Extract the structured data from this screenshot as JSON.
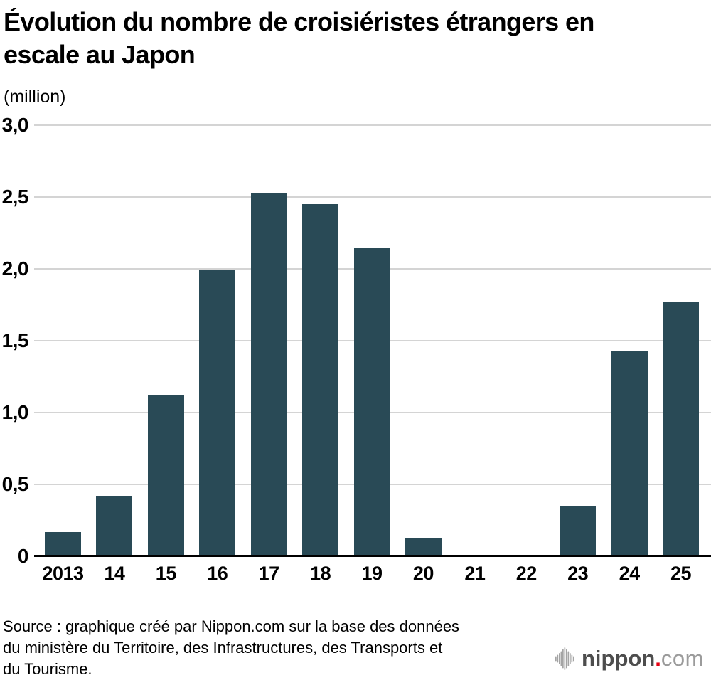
{
  "page": {
    "title_lines": [
      "Évolution du nombre de croisiéristes étrangers en",
      "escale au Japon"
    ],
    "unit_label": "(million)"
  },
  "chart_data": {
    "type": "bar",
    "title": "Évolution du nombre de croisiéristes étrangers en escale au Japon",
    "ylabel": "(million)",
    "xlabel": "",
    "categories": [
      "2013",
      "14",
      "15",
      "16",
      "17",
      "18",
      "19",
      "20",
      "21",
      "22",
      "23",
      "24",
      "25"
    ],
    "values": [
      0.17,
      0.42,
      1.12,
      1.99,
      2.53,
      2.45,
      2.15,
      0.13,
      0,
      0,
      0.35,
      1.43,
      1.77
    ],
    "ylim": [
      0,
      3.0
    ],
    "ytick_values": [
      0,
      0.5,
      1.0,
      1.5,
      2.0,
      2.5,
      3.0
    ],
    "ytick_labels": [
      "0",
      "0,5",
      "1,0",
      "1,5",
      "2,0",
      "2,5",
      "3,0"
    ],
    "grid": true,
    "legend": false,
    "bar_color": "#294a56",
    "grid_color": "#d4d4d4",
    "axis_color": "#000000"
  },
  "source": {
    "lines": [
      "Source : graphique créé par Nippon.com sur la base des données",
      "du ministère du Territoire, des Infrastructures, des Transports et",
      "du Tourisme."
    ]
  },
  "logo": {
    "icon": "nippon-soundwave-icon",
    "brand": "nippon",
    "dot": ".",
    "tld": "com",
    "brand_color": "#4d4d4d",
    "dot_color": "#e60012",
    "tld_color": "#9b9b9b",
    "icon_color": "#a4a4a4"
  }
}
